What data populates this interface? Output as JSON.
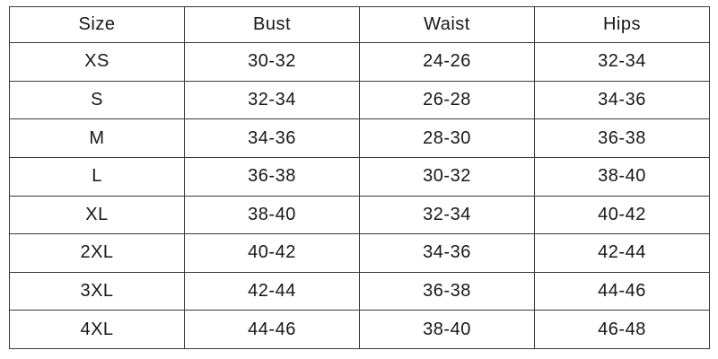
{
  "colors": {
    "background": "#ffffff",
    "border": "#3a3a3a",
    "text": "#171717"
  },
  "table": {
    "columns": [
      "Size",
      "Bust",
      "Waist",
      "Hips"
    ],
    "rows": [
      [
        "XS",
        "30-32",
        "24-26",
        "32-34"
      ],
      [
        "S",
        "32-34",
        "26-28",
        "34-36"
      ],
      [
        "M",
        "34-36",
        "28-30",
        "36-38"
      ],
      [
        "L",
        "36-38",
        "30-32",
        "38-40"
      ],
      [
        "XL",
        "38-40",
        "32-34",
        "40-42"
      ],
      [
        "2XL",
        "40-42",
        "34-36",
        "42-44"
      ],
      [
        "3XL",
        "42-44",
        "36-38",
        "44-46"
      ],
      [
        "4XL",
        "44-46",
        "38-40",
        "46-48"
      ]
    ]
  },
  "chart_data": {
    "type": "table",
    "columns": [
      "Size",
      "Bust",
      "Waist",
      "Hips"
    ],
    "rows": [
      {
        "size": "XS",
        "bust": "30-32",
        "waist": "24-26",
        "hips": "32-34"
      },
      {
        "size": "S",
        "bust": "32-34",
        "waist": "26-28",
        "hips": "34-36"
      },
      {
        "size": "M",
        "bust": "34-36",
        "waist": "28-30",
        "hips": "36-38"
      },
      {
        "size": "L",
        "bust": "36-38",
        "waist": "30-32",
        "hips": "38-40"
      },
      {
        "size": "XL",
        "bust": "38-40",
        "waist": "32-34",
        "hips": "40-42"
      },
      {
        "size": "2XL",
        "bust": "40-42",
        "waist": "34-36",
        "hips": "42-44"
      },
      {
        "size": "3XL",
        "bust": "42-44",
        "waist": "36-38",
        "hips": "44-46"
      },
      {
        "size": "4XL",
        "bust": "44-46",
        "waist": "38-40",
        "hips": "46-48"
      }
    ],
    "layout_hints": {
      "grid": true,
      "header_row": true,
      "cell_alignment": "center"
    }
  }
}
